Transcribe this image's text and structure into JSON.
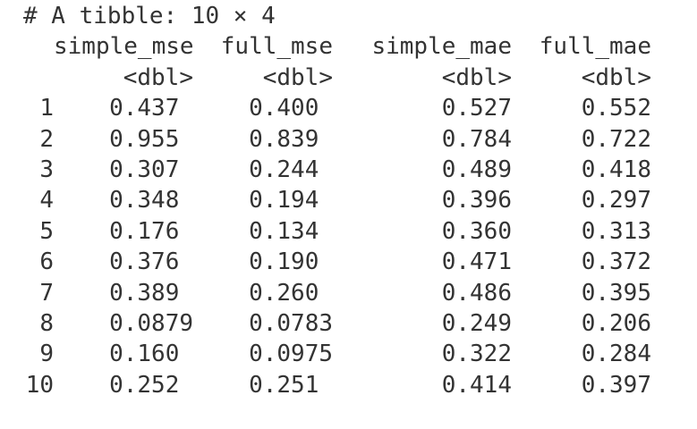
{
  "tibble": {
    "title": "# A tibble: 10 × 4",
    "columns": [
      {
        "name": "simple_mse",
        "type": "<dbl>"
      },
      {
        "name": "full_mse",
        "type": "<dbl>"
      },
      {
        "name": "simple_mae",
        "type": "<dbl>"
      },
      {
        "name": "full_mae",
        "type": "<dbl>"
      }
    ],
    "rows": [
      {
        "index": "1",
        "values": [
          "0.437",
          "0.400",
          "0.527",
          "0.552"
        ]
      },
      {
        "index": "2",
        "values": [
          "0.955",
          "0.839",
          "0.784",
          "0.722"
        ]
      },
      {
        "index": "3",
        "values": [
          "0.307",
          "0.244",
          "0.489",
          "0.418"
        ]
      },
      {
        "index": "4",
        "values": [
          "0.348",
          "0.194",
          "0.396",
          "0.297"
        ]
      },
      {
        "index": "5",
        "values": [
          "0.176",
          "0.134",
          "0.360",
          "0.313"
        ]
      },
      {
        "index": "6",
        "values": [
          "0.376",
          "0.190",
          "0.471",
          "0.372"
        ]
      },
      {
        "index": "7",
        "values": [
          "0.389",
          "0.260",
          "0.486",
          "0.395"
        ]
      },
      {
        "index": "8",
        "values": [
          "0.0879",
          "0.0783",
          "0.249",
          "0.206"
        ]
      },
      {
        "index": "9",
        "values": [
          "0.160",
          "0.0975",
          "0.322",
          "0.284"
        ]
      },
      {
        "index": "10",
        "values": [
          "0.252",
          "0.251",
          "0.414",
          "0.397"
        ]
      }
    ]
  }
}
